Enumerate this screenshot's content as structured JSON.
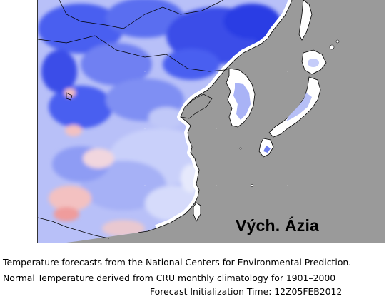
{
  "map": {
    "region_label": "Vých. Ázia",
    "colors": {
      "ocean": "#9a9a9a",
      "cold_strong": "#1f2fe0",
      "cold_medium": "#5a6ef0",
      "cold_light": "#9aa6f5",
      "cold_pale": "#d4d9fb",
      "neutral": "#ffffff",
      "warm_pale": "#f6d6d6",
      "warm_light": "#ef9c9c",
      "coastline": "#000000"
    }
  },
  "caption": {
    "line1": "Temperature forecasts from the National Centers for Environmental Prediction.",
    "line2": "Normal Temperature derived from CRU monthly climatology for 1901–2000",
    "line3": "Forecast Initialization Time: 12Z05FEB2012"
  }
}
